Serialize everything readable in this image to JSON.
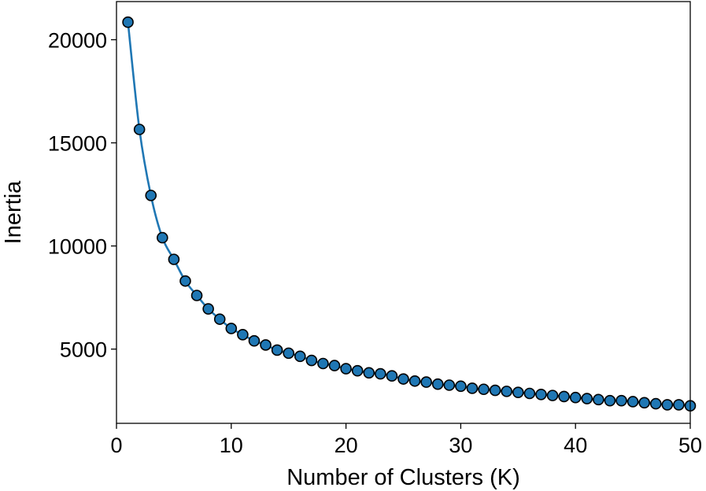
{
  "chart_data": {
    "type": "line",
    "title": "",
    "xlabel": "Number of Clusters (K)",
    "ylabel": "Inertia",
    "xlim": [
      0,
      50
    ],
    "ylim": [
      1400,
      21850
    ],
    "xticks": [
      0,
      10,
      20,
      30,
      40,
      50
    ],
    "yticks": [
      5000,
      10000,
      15000,
      20000
    ],
    "xtick_labels": [
      "0",
      "10",
      "20",
      "30",
      "40",
      "50"
    ],
    "ytick_labels": [
      "5000",
      "10000",
      "15000",
      "20000"
    ],
    "grid": false,
    "legend": "none",
    "line_color": "#1f77b4",
    "marker_face_color": "#1f77b4",
    "marker_edge_color": "#000000",
    "series": [
      {
        "x": [
          1,
          2,
          3,
          4,
          5,
          6,
          7,
          8,
          9,
          10,
          11,
          12,
          13,
          14,
          15,
          16,
          17,
          18,
          19,
          20,
          21,
          22,
          23,
          24,
          25,
          26,
          27,
          28,
          29,
          30,
          31,
          32,
          33,
          34,
          35,
          36,
          37,
          38,
          39,
          40,
          41,
          42,
          43,
          44,
          45,
          46,
          47,
          48,
          49,
          50
        ],
        "values": [
          20850,
          15650,
          12450,
          10400,
          9350,
          8300,
          7600,
          6950,
          6450,
          6000,
          5700,
          5400,
          5200,
          4950,
          4800,
          4650,
          4450,
          4300,
          4200,
          4050,
          3950,
          3850,
          3800,
          3700,
          3550,
          3450,
          3400,
          3300,
          3250,
          3200,
          3100,
          3050,
          3000,
          2950,
          2900,
          2850,
          2800,
          2750,
          2700,
          2650,
          2600,
          2550,
          2500,
          2500,
          2450,
          2400,
          2350,
          2300,
          2300,
          2250
        ]
      }
    ]
  }
}
